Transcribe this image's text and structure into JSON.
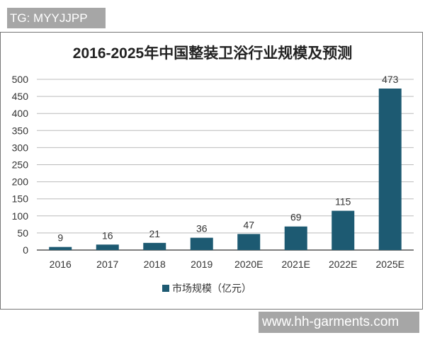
{
  "watermarks": {
    "top_left": "TG: MYYJJPP",
    "bottom_right": "www.hh-garments.com"
  },
  "chart_data": {
    "type": "bar",
    "title": "2016-2025年中国整装卫浴行业规模及预测",
    "categories": [
      "2016",
      "2017",
      "2018",
      "2019",
      "2020E",
      "2021E",
      "2022E",
      "2025E"
    ],
    "series": [
      {
        "name": "市场规模（亿元）",
        "values": [
          9,
          16,
          21,
          36,
          47,
          69,
          115,
          473
        ],
        "color": "#1d5a72"
      }
    ],
    "data_labels": [
      "9",
      "16",
      "21",
      "36",
      "47",
      "69",
      "115",
      "473"
    ],
    "ylim": [
      0,
      500
    ],
    "yticks": [
      0,
      50,
      100,
      150,
      200,
      250,
      300,
      350,
      400,
      450,
      500
    ],
    "grid": true,
    "legend": "bottom",
    "xlabel": "",
    "ylabel": ""
  }
}
